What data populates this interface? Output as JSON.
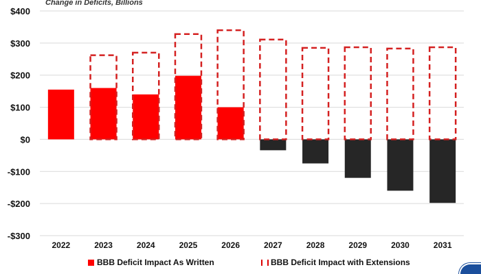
{
  "chart_data": {
    "type": "bar",
    "subtitle": "Change in Deficits, Billions",
    "categories": [
      "2022",
      "2023",
      "2024",
      "2025",
      "2026",
      "2027",
      "2028",
      "2029",
      "2030",
      "2031"
    ],
    "series": [
      {
        "name": "BBB Deficit Impact As Written",
        "style": "solid",
        "values": [
          155,
          160,
          140,
          198,
          100,
          -34,
          -75,
          -120,
          -160,
          -198
        ]
      },
      {
        "name": "BBB Deficit Impact with Extensions",
        "style": "dashed-outline",
        "values": [
          null,
          262,
          270,
          328,
          340,
          311,
          285,
          287,
          283,
          287
        ]
      }
    ],
    "ylim": [
      -300,
      400
    ],
    "yticks": [
      400,
      300,
      200,
      100,
      0,
      -100,
      -200,
      -300
    ],
    "ytick_labels": [
      "$400",
      "$300",
      "$200",
      "$100",
      "$0",
      "-$100",
      "-$200",
      "-$300"
    ],
    "grid": true,
    "legend_position": "bottom",
    "colors": {
      "positive": "#ff0000",
      "negative": "#262626",
      "dashed": "#d42020",
      "grid": "#d9d9d9"
    }
  }
}
